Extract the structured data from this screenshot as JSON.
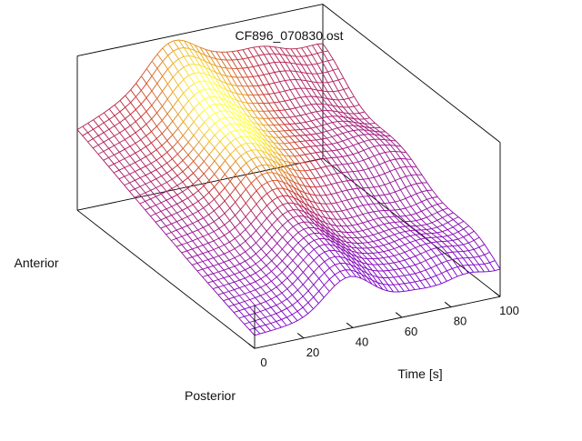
{
  "chart_data": {
    "type": "surface",
    "title": "CF896_070830.ost",
    "xlabel": "Time [s]",
    "ylabel_near": "Posterior",
    "ylabel_far": "Anterior",
    "zlabel": "",
    "xlim": [
      0,
      100
    ],
    "x_ticks": [
      0,
      20,
      40,
      60,
      80,
      100
    ],
    "x_tick_labels": [
      "0",
      "20",
      "40",
      "60",
      "80",
      "100"
    ],
    "colormap": [
      "#000000",
      "#7a00c8",
      "#c22830",
      "#e8a018",
      "#ffff40"
    ],
    "line_color_low": "#8a28ff",
    "line_color_high": "#ffff40"
  }
}
